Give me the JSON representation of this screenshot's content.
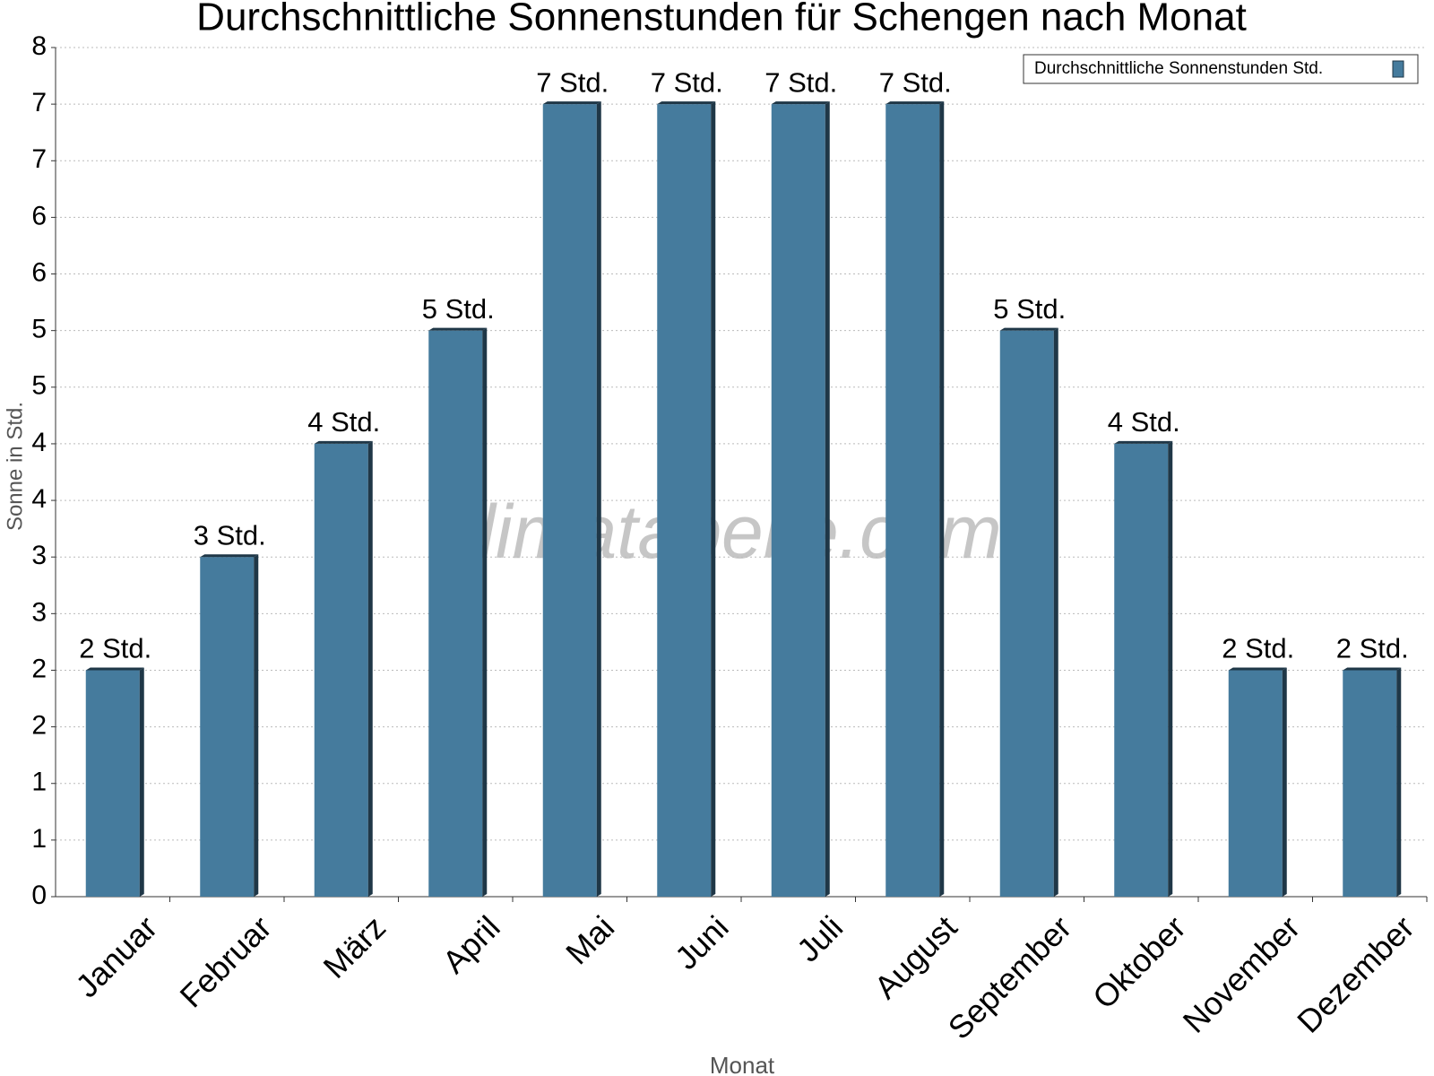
{
  "chart_data": {
    "type": "bar",
    "title": "Durchschnittliche Sonnenstunden für Schengen nach Monat",
    "xlabel": "Monat",
    "ylabel": "Sonne in Std.",
    "watermark": "klimatabelle.com",
    "categories": [
      "Januar",
      "Februar",
      "März",
      "April",
      "Mai",
      "Juni",
      "Juli",
      "August",
      "September",
      "Oktober",
      "November",
      "Dezember"
    ],
    "series": [
      {
        "name": "Durchschnittliche Sonnenstunden Std.",
        "color": "#457b9d",
        "values": [
          2,
          3,
          4,
          5,
          7,
          7,
          7,
          7,
          5,
          4,
          2,
          2
        ],
        "value_labels": [
          "2 Std.",
          "3 Std.",
          "4 Std.",
          "5 Std.",
          "7 Std.",
          "7 Std.",
          "7 Std.",
          "7 Std.",
          "5 Std.",
          "4 Std.",
          "2 Std.",
          "2 Std."
        ]
      }
    ],
    "ylim": [
      0,
      7.5
    ],
    "yticks": [
      0,
      {
        "value": 0.5,
        "label": "1"
      },
      1,
      {
        "value": 1.5,
        "label": "2"
      },
      2,
      {
        "value": 2.5,
        "label": "3"
      },
      3,
      {
        "value": 3.5,
        "label": "4"
      },
      4,
      {
        "value": 4.5,
        "label": "5"
      },
      5,
      {
        "value": 5.5,
        "label": "6"
      },
      6,
      {
        "value": 6.5,
        "label": "7"
      },
      7,
      {
        "value": 7.5,
        "label": "8"
      }
    ],
    "grid": true,
    "legend": "top-right"
  }
}
